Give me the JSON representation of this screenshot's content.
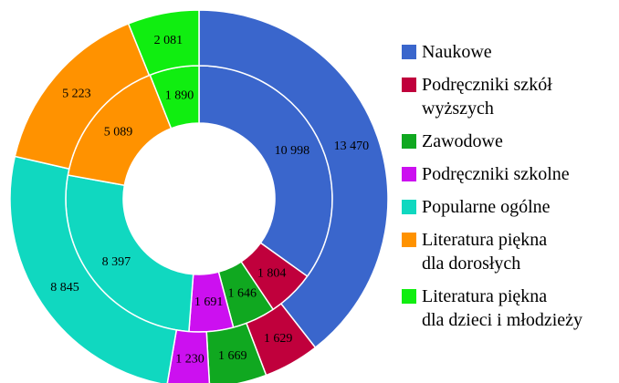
{
  "chart_data": {
    "type": "donut",
    "categories": [
      "Naukowe",
      "Podręczniki szkół\nwyższych",
      "Zawodowe",
      "Podręczniki szkolne",
      "Popularne ogólne",
      "Literatura piękna\ndla dorosłych",
      "Literatura piękna\ndla dzieci i młodzieży"
    ],
    "colors": [
      "#3a66cc",
      "#c0003c",
      "#10a820",
      "#cc10f0",
      "#10d8c0",
      "#ff9200",
      "#10ee10"
    ],
    "series": [
      {
        "values": [
          10998,
          1804,
          1646,
          1691,
          8397,
          5089,
          1890
        ],
        "value_labels": [
          "10 998",
          "1 804",
          "1 646",
          "1 691",
          "8 397",
          "5 089",
          "1 890"
        ]
      },
      {
        "values": [
          13470,
          1629,
          1669,
          1230,
          8845,
          5223,
          2081
        ],
        "value_labels": [
          "13 470",
          "1 629",
          "1 669",
          "1 230",
          "8 845",
          "5 223",
          "2 081"
        ]
      }
    ]
  }
}
